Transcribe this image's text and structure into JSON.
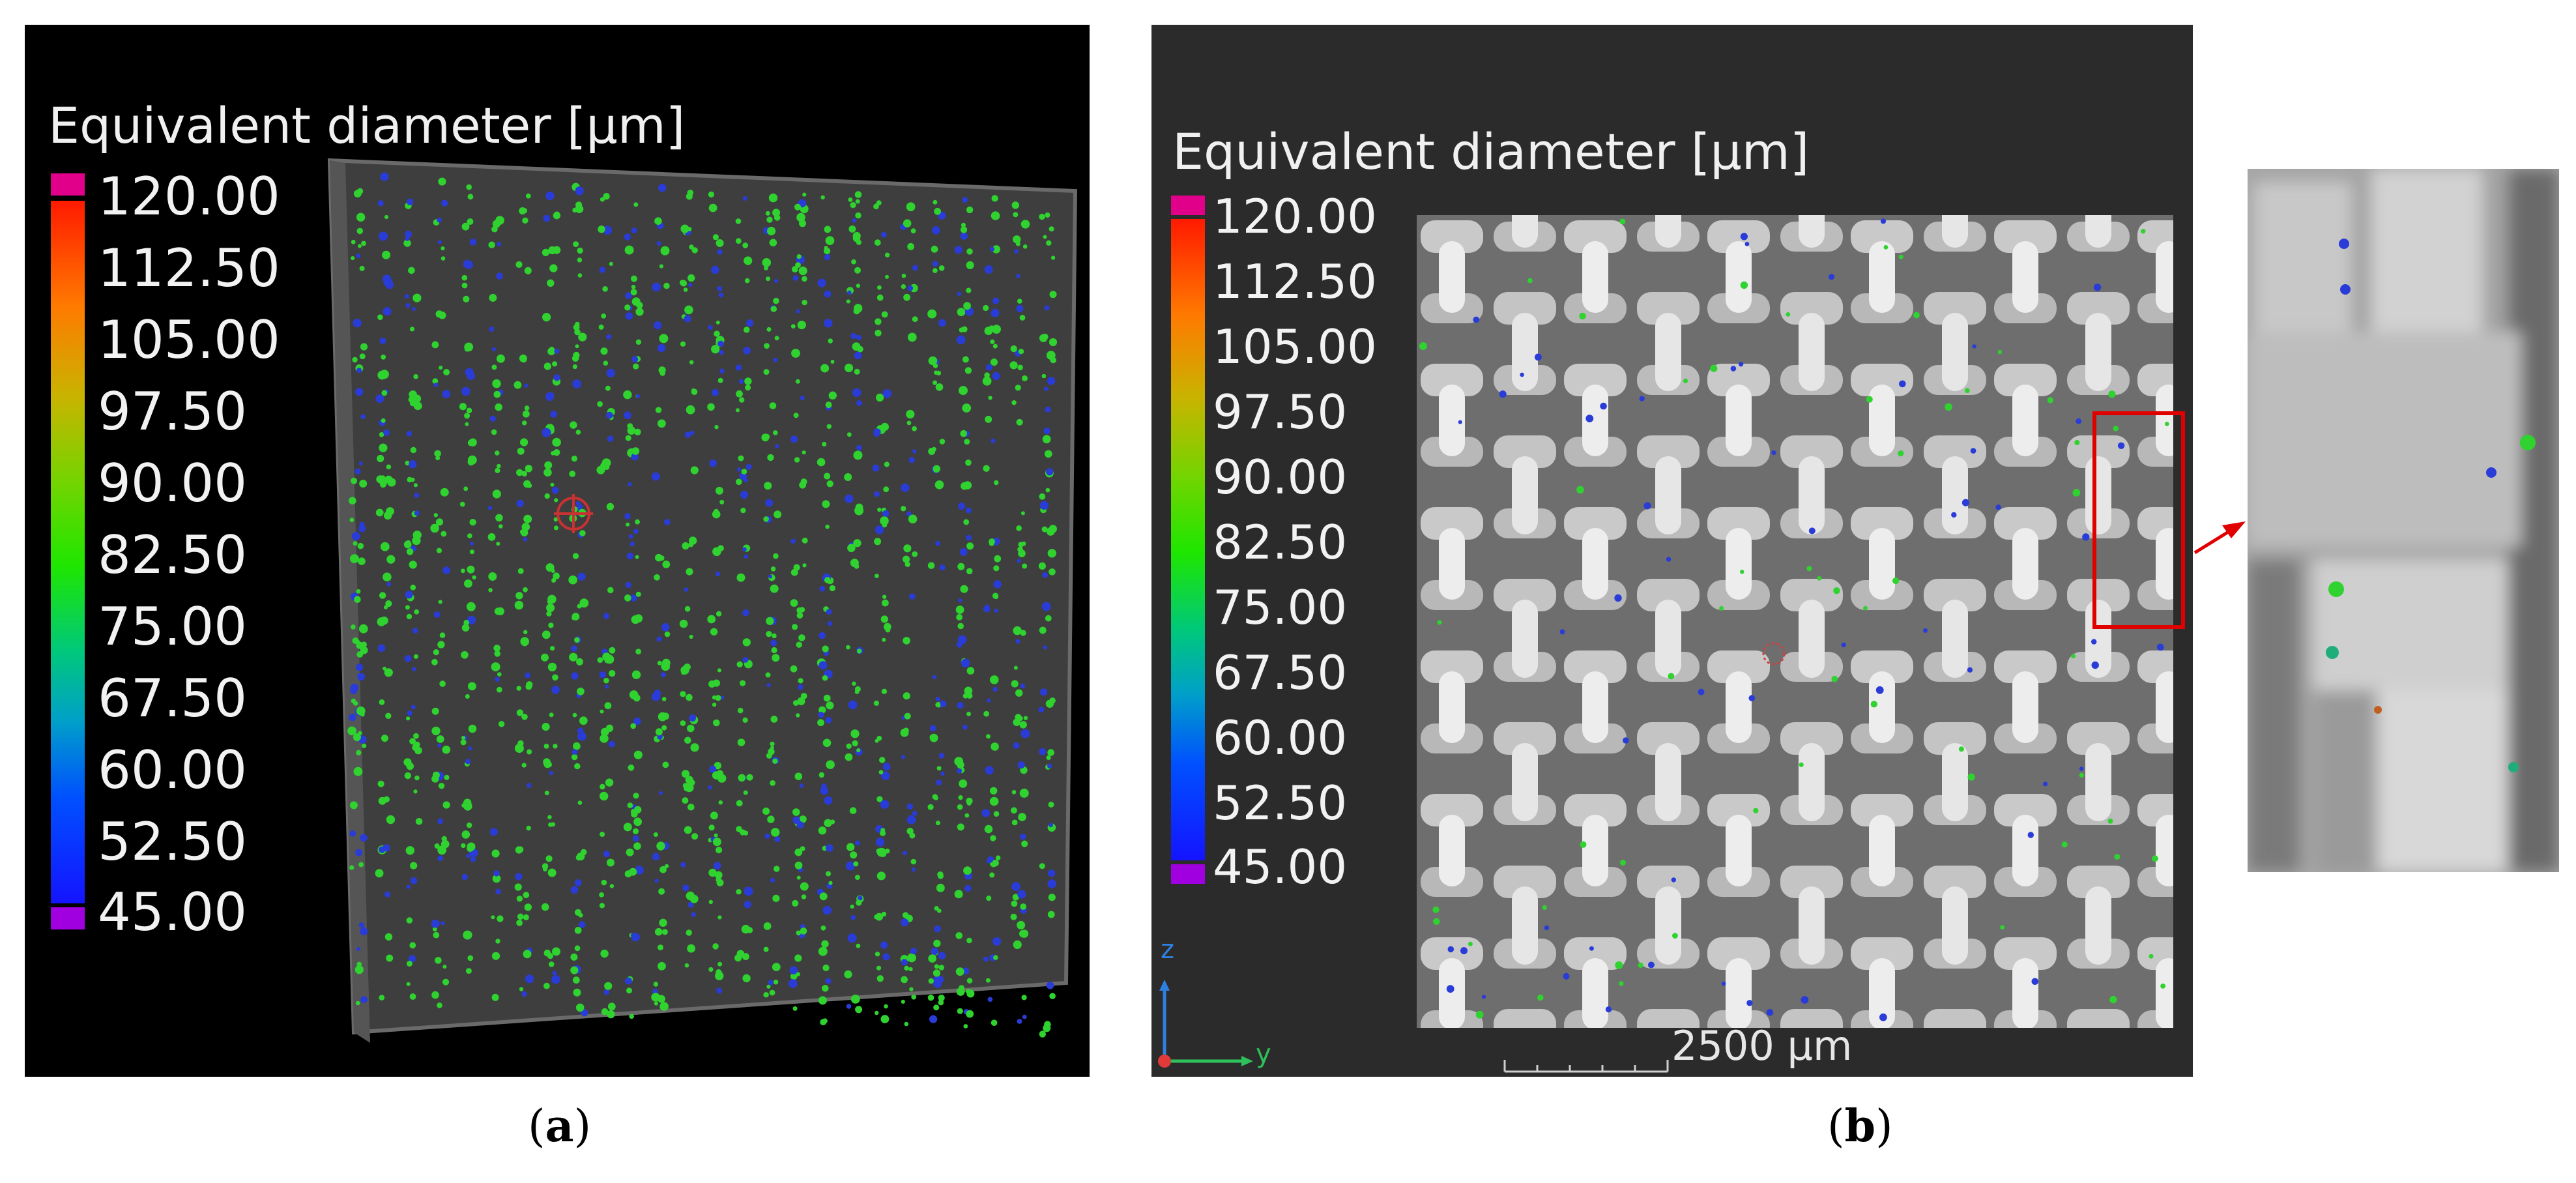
{
  "figure": {
    "panel_a": {
      "legend_title": "Equivalent diameter [µm]",
      "ticks": [
        "120.00",
        "112.50",
        "105.00",
        "97.50",
        "90.00",
        "82.50",
        "75.00",
        "67.50",
        "60.00",
        "52.50",
        "45.00"
      ]
    },
    "panel_b": {
      "legend_title": "Equivalent diameter [µm]",
      "ticks": [
        "120.00",
        "112.50",
        "105.00",
        "97.50",
        "90.00",
        "82.50",
        "75.00",
        "67.50",
        "60.00",
        "52.50",
        "45.00"
      ],
      "scale_bar_label": "2500 µm",
      "axis_labels": {
        "z": "z",
        "y": "y"
      }
    },
    "captions": {
      "a_open": "(",
      "a_letter": "a",
      "a_close": ")",
      "b_open": "(",
      "b_letter": "b",
      "b_close": ")"
    },
    "colors": {
      "max_cap": "#e0008a",
      "min_cap": "#a000e0",
      "highlight_box": "#e00000",
      "pore_green": "#2fd22f",
      "pore_blue": "#2a3cd8"
    }
  }
}
